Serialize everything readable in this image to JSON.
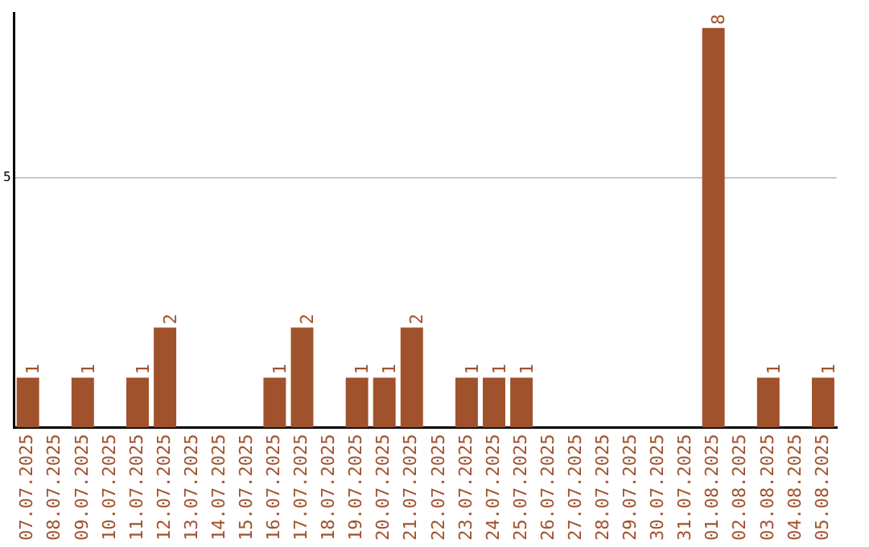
{
  "chart_data": {
    "type": "bar",
    "categories": [
      "07.07.2025",
      "08.07.2025",
      "09.07.2025",
      "10.07.2025",
      "11.07.2025",
      "12.07.2025",
      "13.07.2025",
      "14.07.2025",
      "15.07.2025",
      "16.07.2025",
      "17.07.2025",
      "18.07.2025",
      "19.07.2025",
      "20.07.2025",
      "21.07.2025",
      "22.07.2025",
      "23.07.2025",
      "24.07.2025",
      "25.07.2025",
      "26.07.2025",
      "27.07.2025",
      "28.07.2025",
      "29.07.2025",
      "30.07.2025",
      "31.07.2025",
      "01.08.2025",
      "02.08.2025",
      "03.08.2025",
      "04.08.2025",
      "05.08.2025"
    ],
    "values": [
      1,
      0,
      1,
      0,
      1,
      2,
      0,
      0,
      0,
      1,
      2,
      0,
      1,
      1,
      2,
      0,
      1,
      1,
      1,
      0,
      0,
      0,
      0,
      0,
      0,
      8,
      0,
      1,
      0,
      1
    ],
    "value_labels": [
      "1",
      null,
      "1",
      null,
      "1",
      "2",
      null,
      null,
      null,
      "1",
      "2",
      null,
      "1",
      "1",
      "2",
      null,
      "1",
      "1",
      "1",
      null,
      null,
      null,
      null,
      null,
      null,
      "8",
      null,
      "1",
      null,
      "1"
    ],
    "color": "#a0522d",
    "ylim": [
      0,
      8.3
    ],
    "yticks": [
      5
    ],
    "grid": "y",
    "legend": false
  }
}
